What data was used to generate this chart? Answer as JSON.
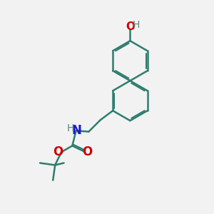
{
  "bg_color": "#f2f2f2",
  "bond_color": "#2e7d6e",
  "bond_width": 1.8,
  "dbo": 0.08,
  "atom_colors": {
    "O": "#cc0000",
    "N": "#1a1acc",
    "H": "#5a8a7a"
  },
  "font_size": 11,
  "font_size_h": 10
}
